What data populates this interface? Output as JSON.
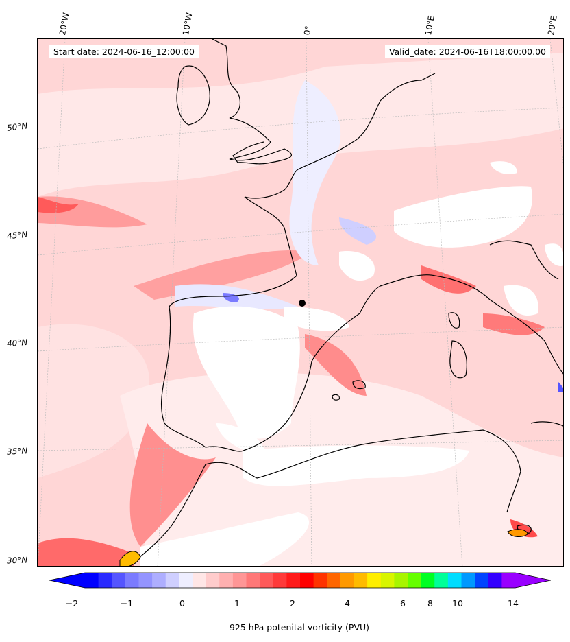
{
  "map": {
    "start_date_label": "Start date: 2024-06-16_12:00:00",
    "valid_date_label": "Valid_date: 2024-06-16T18:00:00.00",
    "lon_labels": [
      "20°W",
      "10°W",
      "0°",
      "10°E",
      "20°E"
    ],
    "lat_labels": [
      "50°N",
      "45°N",
      "40°N",
      "35°N",
      "30°N"
    ],
    "field": "925 hPa potential vorticity",
    "coastline_color": "#000000",
    "gridline_color": "#bbbbbb"
  },
  "colorbar": {
    "label": "925 hPa potenital vorticity (PVU)",
    "tick_labels": [
      "−2",
      "−1",
      "0",
      "1",
      "2",
      "4",
      "6",
      "8",
      "10",
      "14"
    ],
    "extend": "both",
    "colors": [
      "#0000ff",
      "#2a2aff",
      "#5555ff",
      "#7b7bff",
      "#9494ff",
      "#aeaeff",
      "#cfcfff",
      "#eeeeff",
      "#ffe6e6",
      "#ffcccc",
      "#ffb0b0",
      "#ff9696",
      "#ff7878",
      "#ff5a5a",
      "#ff3a3a",
      "#ff1a1a",
      "#ff0000",
      "#ff3300",
      "#ff6600",
      "#ff9900",
      "#ffbb00",
      "#ffee00",
      "#d8f500",
      "#a8f500",
      "#66ff00",
      "#00ff22",
      "#00ff99",
      "#00ddff",
      "#0099ff",
      "#0044ff",
      "#3300ff",
      "#9900ff"
    ],
    "under_color": "#0000ff",
    "over_color": "#9900ff"
  }
}
